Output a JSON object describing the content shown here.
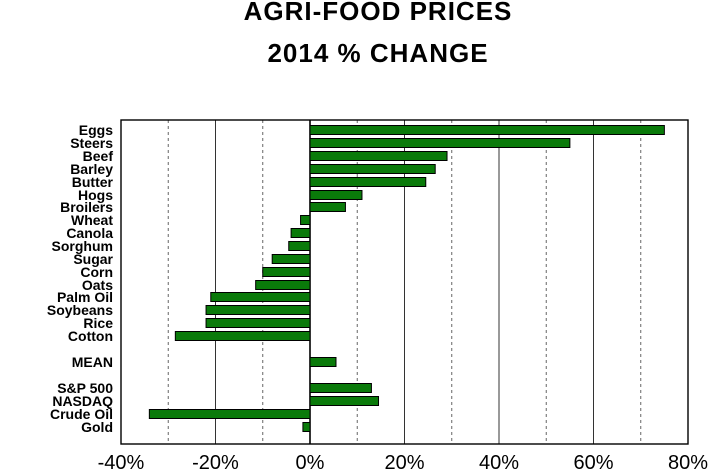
{
  "chart_data": {
    "type": "bar",
    "orientation": "horizontal",
    "title": "AGRI-FOOD PRICES",
    "subtitle": "2014 % CHANGE",
    "xlim": [
      -40,
      80
    ],
    "x_ticks": [
      "-40%",
      "-20%",
      "0%",
      "20%",
      "40%",
      "60%",
      "80%"
    ],
    "categories": [
      "Eggs",
      "Steers",
      "Beef",
      "Barley",
      "Butter",
      "Hogs",
      "Broilers",
      "Wheat",
      "Canola",
      "Sorghum",
      "Sugar",
      "Corn",
      "Oats",
      "Palm Oil",
      "Soybeans",
      "Rice",
      "Cotton",
      "MEAN",
      "S&P 500",
      "NASDAQ",
      "Crude Oil",
      "Gold"
    ],
    "values": [
      75,
      55,
      29,
      26.5,
      24.5,
      11,
      7.5,
      -2,
      -4,
      -4.5,
      -8,
      -10,
      -11.5,
      -21,
      -22,
      -22,
      -28.5,
      5.5,
      13,
      14.5,
      -34,
      -1.5
    ],
    "grid": true,
    "bar_color": "#0a7a0a"
  }
}
